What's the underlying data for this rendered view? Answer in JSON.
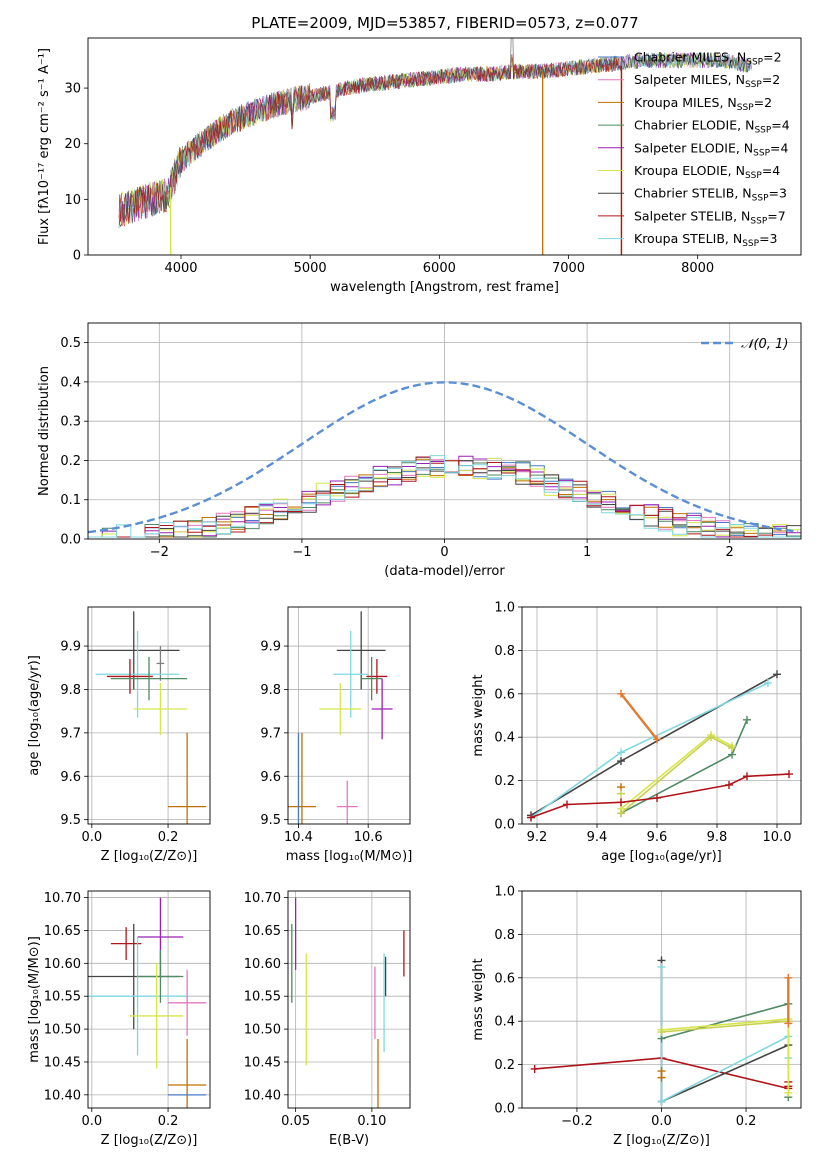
{
  "figure_title": "PLATE=2009, MJD=53857, FIBERID=0573, z=0.077",
  "chart_data": [
    {
      "id": "spectrum",
      "type": "line",
      "title": "PLATE=2009, MJD=53857, FIBERID=0573, z=0.077",
      "xlabel": "wavelength [Angstrom, rest frame]",
      "ylabel": "Flux [fλ10⁻¹⁷ erg cm⁻² s⁻¹ A⁻¹]",
      "xlim": [
        3280,
        8800
      ],
      "ylim": [
        0,
        39
      ],
      "xticks": [
        4000,
        5000,
        6000,
        7000,
        8000
      ],
      "yticks": [
        0,
        10,
        20,
        30
      ],
      "legend_position": "upper-right",
      "grid": false,
      "series": [
        {
          "name": "Chabrier MILES, N_SSP=2",
          "color": "#4878c8"
        },
        {
          "name": "Salpeter MILES, N_SSP=2",
          "color": "#e377c2"
        },
        {
          "name": "Kroupa MILES, N_SSP=2",
          "color": "#c07000"
        },
        {
          "name": "Chabrier ELODIE, N_SSP=4",
          "color": "#4e8a62"
        },
        {
          "name": "Salpeter ELODIE, N_SSP=4",
          "color": "#9a1fb5"
        },
        {
          "name": "Kroupa ELODIE, N_SSP=4",
          "color": "#d6e64a"
        },
        {
          "name": "Chabrier STELIB, N_SSP=3",
          "color": "#444444"
        },
        {
          "name": "Salpeter STELIB, N_SSP=7",
          "color": "#b0141a"
        },
        {
          "name": "Kroupa STELIB, N_SSP=3",
          "color": "#7fd8e0"
        }
      ],
      "continuum": [
        [
          3520,
          8
        ],
        [
          3700,
          9.5
        ],
        [
          3900,
          11
        ],
        [
          4000,
          17
        ],
        [
          4200,
          21
        ],
        [
          4400,
          24
        ],
        [
          4600,
          26
        ],
        [
          4800,
          27.5
        ],
        [
          5000,
          28.5
        ],
        [
          5200,
          29.5
        ],
        [
          5400,
          30.5
        ],
        [
          5600,
          31
        ],
        [
          5800,
          31.5
        ],
        [
          6000,
          32
        ],
        [
          6200,
          32.5
        ],
        [
          6400,
          32.5
        ],
        [
          6600,
          33
        ],
        [
          6800,
          33
        ],
        [
          7000,
          33.5
        ],
        [
          7200,
          34
        ],
        [
          7400,
          34.5
        ],
        [
          7600,
          35
        ],
        [
          7800,
          35
        ],
        [
          8000,
          35
        ],
        [
          8200,
          35
        ],
        [
          8400,
          34
        ]
      ],
      "spectrum_end": [
        7400,
        8420
      ],
      "drops": [
        [
          3920,
          0
        ],
        [
          6800,
          0
        ],
        [
          7410,
          0
        ]
      ]
    },
    {
      "id": "residuals",
      "type": "histogram",
      "xlabel": "(data-model)/error",
      "ylabel": "Normed distribution",
      "xlim": [
        -2.5,
        2.5
      ],
      "ylim": [
        0,
        0.55
      ],
      "xticks": [
        -2,
        -1,
        0,
        1,
        2
      ],
      "yticks": [
        0.0,
        0.1,
        0.2,
        0.3,
        0.4,
        0.5
      ],
      "grid": true,
      "legend_position": "upper-right",
      "reference": {
        "name": "𝒩(0, 1)",
        "mean": 0,
        "sigma": 1,
        "color": "#5b8fd4"
      },
      "bin_width": 0.1
    },
    {
      "id": "age-vs-Z",
      "type": "errorbar",
      "xlabel": "Z [log₁₀(Z/Z⊙)]",
      "ylabel": "age  [log₁₀(age/yr)]",
      "xlim": [
        -0.01,
        0.31
      ],
      "ylim": [
        9.49,
        9.99
      ],
      "xticks": [
        0.0,
        0.2
      ],
      "yticks": [
        9.5,
        9.6,
        9.7,
        9.8,
        9.9
      ],
      "grid": true,
      "points": [
        {
          "x": 0.11,
          "y": 9.89,
          "xerr": 0.12,
          "yerr": 0.09,
          "color": "#444444"
        },
        {
          "x": 0.18,
          "y": 9.86,
          "xerr": 0.01,
          "yerr": 0.04,
          "color": "#7f7f7f"
        },
        {
          "x": 0.12,
          "y": 9.835,
          "xerr": 0.11,
          "yerr": 0.1,
          "color": "#7fd8e0"
        },
        {
          "x": 0.1,
          "y": 9.83,
          "xerr": 0.06,
          "yerr": 0.04,
          "color": "#b0141a"
        },
        {
          "x": 0.15,
          "y": 9.825,
          "xerr": 0.1,
          "yerr": 0.05,
          "color": "#4e8a62"
        },
        {
          "x": 0.18,
          "y": 9.755,
          "xerr": 0.07,
          "yerr": 0.06,
          "color": "#d6e64a"
        },
        {
          "x": 0.25,
          "y": 9.53,
          "xerr": 0.05,
          "yerr": 0.17,
          "color": "#c07000"
        }
      ]
    },
    {
      "id": "age-vs-mass",
      "type": "errorbar",
      "xlabel": "mass [log₁₀(M/M⊙)]",
      "ylabel": "",
      "xlim": [
        10.37,
        10.72
      ],
      "ylim": [
        9.49,
        9.99
      ],
      "xticks": [
        10.4,
        10.6
      ],
      "yticks": [
        9.5,
        9.6,
        9.7,
        9.8,
        9.9
      ],
      "grid": true,
      "points": [
        {
          "x": 10.58,
          "y": 9.89,
          "xerr": 0.07,
          "yerr": 0.09,
          "color": "#444444"
        },
        {
          "x": 10.55,
          "y": 9.835,
          "xerr": 0.05,
          "yerr": 0.1,
          "color": "#7fd8e0"
        },
        {
          "x": 10.625,
          "y": 9.83,
          "xerr": 0.03,
          "yerr": 0.04,
          "color": "#b0141a"
        },
        {
          "x": 10.61,
          "y": 9.825,
          "xerr": 0.03,
          "yerr": 0.05,
          "color": "#4e8a62"
        },
        {
          "x": 10.52,
          "y": 9.755,
          "xerr": 0.06,
          "yerr": 0.06,
          "color": "#d6e64a"
        },
        {
          "x": 10.64,
          "y": 9.755,
          "xerr": 0.03,
          "yerr": 0.07,
          "color": "#9a1fb5"
        },
        {
          "x": 10.54,
          "y": 9.53,
          "xerr": 0.03,
          "yerr": 0.06,
          "color": "#e377c2"
        },
        {
          "x": 10.41,
          "y": 9.53,
          "xerr": 0.04,
          "yerr": 0.17,
          "color": "#c07000"
        },
        {
          "x": 10.4,
          "y": 9.53,
          "xerr": 0.0,
          "yerr": 0.17,
          "color": "#4878c8"
        }
      ]
    },
    {
      "id": "weight-vs-age",
      "type": "line",
      "xlabel": "age  [log₁₀(age/yr)]",
      "ylabel": "mass weight",
      "xlim": [
        9.15,
        10.08
      ],
      "ylim": [
        0,
        1.0
      ],
      "xticks": [
        9.2,
        9.4,
        9.6,
        9.8,
        10.0
      ],
      "yticks": [
        0.0,
        0.2,
        0.4,
        0.6,
        0.8,
        1.0
      ],
      "grid": true,
      "series": [
        {
          "color": "#444444",
          "x": [
            9.18,
            9.48,
            10.0
          ],
          "y": [
            0.04,
            0.29,
            0.69
          ]
        },
        {
          "color": "#7fd8e0",
          "x": [
            9.18,
            9.48,
            9.97
          ],
          "y": [
            0.03,
            0.33,
            0.65
          ]
        },
        {
          "color": "#4e8a62",
          "x": [
            9.48,
            9.85,
            9.9
          ],
          "y": [
            0.05,
            0.32,
            0.48
          ]
        },
        {
          "color": "#d6e64a",
          "x": [
            9.48,
            9.78,
            9.85
          ],
          "y": [
            0.07,
            0.41,
            0.36
          ]
        },
        {
          "color": "#c8d050",
          "x": [
            9.48,
            9.78,
            9.85
          ],
          "y": [
            0.05,
            0.4,
            0.35
          ]
        },
        {
          "color": "#b0141a",
          "x": [
            9.18,
            9.3,
            9.48,
            9.6,
            9.84,
            9.9,
            10.04
          ],
          "y": [
            0.03,
            0.09,
            0.1,
            0.12,
            0.18,
            0.22,
            0.23
          ]
        },
        {
          "color": "#e07b30",
          "x": [
            9.48,
            9.6
          ],
          "y": [
            0.6,
            0.39
          ]
        },
        {
          "color": "#c07000",
          "x": [
            9.48
          ],
          "y": [
            0.17
          ]
        },
        {
          "color": "#c8d050",
          "x": [
            9.48
          ],
          "y": [
            0.14
          ]
        }
      ]
    },
    {
      "id": "mass-vs-Z",
      "type": "errorbar",
      "xlabel": "Z [log₁₀(Z/Z⊙)]",
      "ylabel": "mass [log₁₀(M/M⊙)]",
      "xlim": [
        -0.01,
        0.31
      ],
      "ylim": [
        10.38,
        10.71
      ],
      "xticks": [
        0.0,
        0.2
      ],
      "yticks": [
        10.4,
        10.45,
        10.5,
        10.55,
        10.6,
        10.65,
        10.7
      ],
      "grid": true,
      "points": [
        {
          "x": 0.18,
          "y": 10.64,
          "xerr": 0.06,
          "yerr": 0.06,
          "color": "#9a1fb5"
        },
        {
          "x": 0.09,
          "y": 10.63,
          "xerr": 0.04,
          "yerr": 0.025,
          "color": "#b0141a"
        },
        {
          "x": 0.11,
          "y": 10.58,
          "xerr": 0.12,
          "yerr": 0.08,
          "color": "#444444"
        },
        {
          "x": 0.12,
          "y": 10.55,
          "xerr": 0.13,
          "yerr": 0.09,
          "color": "#7fd8e0"
        },
        {
          "x": 0.18,
          "y": 10.58,
          "xerr": 0.06,
          "yerr": 0.04,
          "color": "#4e8a62"
        },
        {
          "x": 0.17,
          "y": 10.52,
          "xerr": 0.07,
          "yerr": 0.08,
          "color": "#d6e64a"
        },
        {
          "x": 0.25,
          "y": 10.54,
          "xerr": 0.05,
          "yerr": 0.05,
          "color": "#e377c2"
        },
        {
          "x": 0.25,
          "y": 10.415,
          "xerr": 0.05,
          "yerr": 0.07,
          "color": "#c07000"
        },
        {
          "x": 0.25,
          "y": 10.4,
          "xerr": 0.05,
          "yerr": 0.0,
          "color": "#4878c8"
        }
      ]
    },
    {
      "id": "mass-vs-EBV",
      "type": "errorbar",
      "xlabel": "E(B-V)",
      "ylabel": "",
      "xlim": [
        0.045,
        0.125
      ],
      "ylim": [
        10.38,
        10.71
      ],
      "xticks": [
        0.05,
        0.1
      ],
      "yticks": [
        10.4,
        10.45,
        10.5,
        10.55,
        10.6,
        10.65,
        10.7
      ],
      "grid": true,
      "points": [
        {
          "x": 0.0475,
          "y": 10.6,
          "xerr": 0,
          "yerr": 0.06,
          "color": "#4e8a62"
        },
        {
          "x": 0.05,
          "y": 10.645,
          "xerr": 0,
          "yerr": 0.055,
          "color": "#9a1fb5"
        },
        {
          "x": 0.057,
          "y": 10.53,
          "xerr": 0,
          "yerr": 0.085,
          "color": "#d6e64a"
        },
        {
          "x": 0.102,
          "y": 10.54,
          "xerr": 0,
          "yerr": 0.055,
          "color": "#e377c2"
        },
        {
          "x": 0.104,
          "y": 10.43,
          "xerr": 0,
          "yerr": 0.055,
          "color": "#c07000"
        },
        {
          "x": 0.108,
          "y": 10.54,
          "xerr": 0,
          "yerr": 0.075,
          "color": "#7fd8e0"
        },
        {
          "x": 0.109,
          "y": 10.58,
          "xerr": 0,
          "yerr": 0.03,
          "color": "#444444"
        },
        {
          "x": 0.121,
          "y": 10.615,
          "xerr": 0,
          "yerr": 0.035,
          "color": "#b0141a"
        }
      ]
    },
    {
      "id": "weight-vs-Z",
      "type": "line",
      "xlabel": "Z [log₁₀(Z/Z⊙)]",
      "ylabel": "mass weight",
      "xlim": [
        -0.33,
        0.33
      ],
      "ylim": [
        0,
        1.0
      ],
      "xticks": [
        -0.2,
        0.0,
        0.2
      ],
      "yticks": [
        0.0,
        0.2,
        0.4,
        0.6,
        0.8,
        1.0
      ],
      "grid": true,
      "series": [
        {
          "color": "#b0141a",
          "x": [
            -0.3,
            0.0,
            0.3,
            0.3,
            0.3
          ],
          "y": [
            0.18,
            0.23,
            0.09,
            0.12,
            0.1
          ]
        },
        {
          "color": "#444444",
          "x": [
            0.0,
            0.0,
            0.3
          ],
          "y": [
            0.68,
            0.03,
            0.29
          ]
        },
        {
          "color": "#7fd8e0",
          "x": [
            0.0,
            0.0,
            0.3,
            0.3
          ],
          "y": [
            0.65,
            0.03,
            0.33,
            0.23
          ]
        },
        {
          "color": "#4e8a62",
          "x": [
            0.0,
            0.3,
            0.3
          ],
          "y": [
            0.32,
            0.48,
            0.05
          ]
        },
        {
          "color": "#d6e64a",
          "x": [
            0.0,
            0.3,
            0.3
          ],
          "y": [
            0.36,
            0.41,
            0.07
          ]
        },
        {
          "color": "#c8d050",
          "x": [
            0.0,
            0.3
          ],
          "y": [
            0.35,
            0.4
          ]
        },
        {
          "color": "#e07b30",
          "x": [
            0.3,
            0.3
          ],
          "y": [
            0.6,
            0.39
          ]
        },
        {
          "color": "#c07000",
          "x": [
            0.0,
            0.0
          ],
          "y": [
            0.17,
            0.14
          ]
        }
      ]
    }
  ]
}
